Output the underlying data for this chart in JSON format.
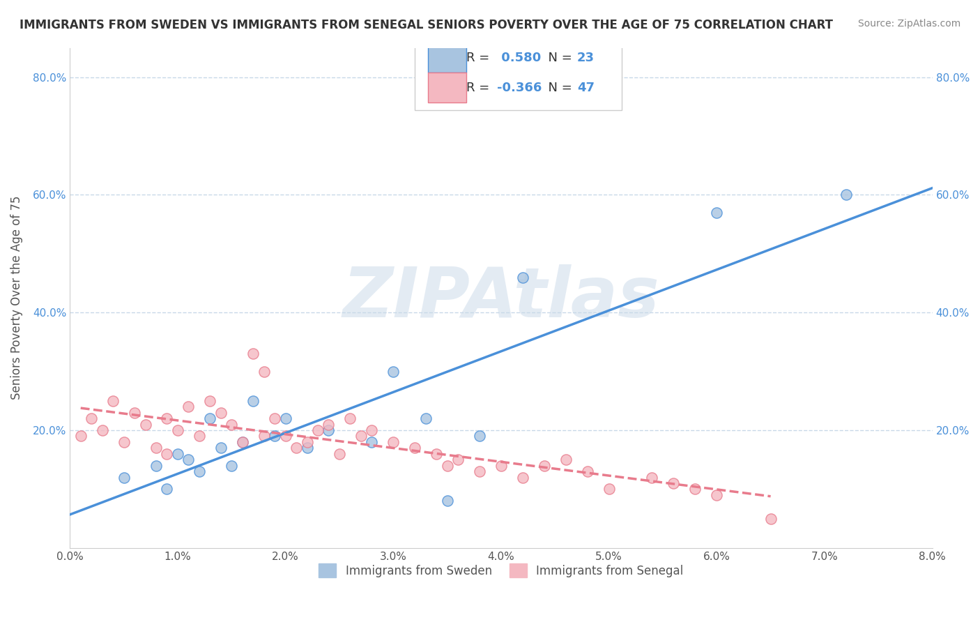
{
  "title": "IMMIGRANTS FROM SWEDEN VS IMMIGRANTS FROM SENEGAL SENIORS POVERTY OVER THE AGE OF 75 CORRELATION CHART",
  "source": "Source: ZipAtlas.com",
  "xlabel": "",
  "ylabel": "Seniors Poverty Over the Age of 75",
  "xlim": [
    0.0,
    0.08
  ],
  "ylim": [
    0.0,
    0.85
  ],
  "xticks": [
    0.0,
    0.01,
    0.02,
    0.03,
    0.04,
    0.05,
    0.06,
    0.07,
    0.08
  ],
  "xticklabels": [
    "0.0%",
    "1.0%",
    "2.0%",
    "3.0%",
    "4.0%",
    "5.0%",
    "6.0%",
    "7.0%",
    "8.0%"
  ],
  "yticks": [
    0.0,
    0.2,
    0.4,
    0.6,
    0.8
  ],
  "yticklabels": [
    "",
    "20.0%",
    "40.0%",
    "60.0%",
    "80.0%"
  ],
  "sweden_R": 0.58,
  "sweden_N": 23,
  "senegal_R": -0.366,
  "senegal_N": 47,
  "sweden_color": "#a8c4e0",
  "senegal_color": "#f4b8c1",
  "sweden_line_color": "#4a90d9",
  "senegal_line_color": "#e87b8c",
  "background_color": "#ffffff",
  "grid_color": "#c8d8e8",
  "watermark": "ZIPAtlas",
  "watermark_color": "#c8d8e8",
  "sweden_x": [
    0.005,
    0.008,
    0.009,
    0.01,
    0.011,
    0.012,
    0.013,
    0.014,
    0.015,
    0.016,
    0.017,
    0.019,
    0.02,
    0.022,
    0.024,
    0.028,
    0.03,
    0.033,
    0.035,
    0.038,
    0.042,
    0.06,
    0.072
  ],
  "sweden_y": [
    0.12,
    0.14,
    0.1,
    0.16,
    0.15,
    0.13,
    0.22,
    0.17,
    0.14,
    0.18,
    0.25,
    0.19,
    0.22,
    0.17,
    0.2,
    0.18,
    0.3,
    0.22,
    0.08,
    0.19,
    0.46,
    0.57,
    0.6
  ],
  "senegal_x": [
    0.001,
    0.002,
    0.003,
    0.004,
    0.005,
    0.006,
    0.007,
    0.008,
    0.009,
    0.01,
    0.011,
    0.012,
    0.013,
    0.014,
    0.015,
    0.016,
    0.017,
    0.018,
    0.019,
    0.02,
    0.021,
    0.022,
    0.023,
    0.024,
    0.025,
    0.026,
    0.027,
    0.028,
    0.03,
    0.032,
    0.034,
    0.036,
    0.038,
    0.04,
    0.042,
    0.044,
    0.046,
    0.048,
    0.05,
    0.054,
    0.056,
    0.058,
    0.06,
    0.065,
    0.035,
    0.009,
    0.018
  ],
  "senegal_y": [
    0.19,
    0.22,
    0.2,
    0.25,
    0.18,
    0.23,
    0.21,
    0.17,
    0.22,
    0.2,
    0.24,
    0.19,
    0.25,
    0.23,
    0.21,
    0.18,
    0.33,
    0.3,
    0.22,
    0.19,
    0.17,
    0.18,
    0.2,
    0.21,
    0.16,
    0.22,
    0.19,
    0.2,
    0.18,
    0.17,
    0.16,
    0.15,
    0.13,
    0.14,
    0.12,
    0.14,
    0.15,
    0.13,
    0.1,
    0.12,
    0.11,
    0.1,
    0.09,
    0.05,
    0.14,
    0.16,
    0.19
  ]
}
